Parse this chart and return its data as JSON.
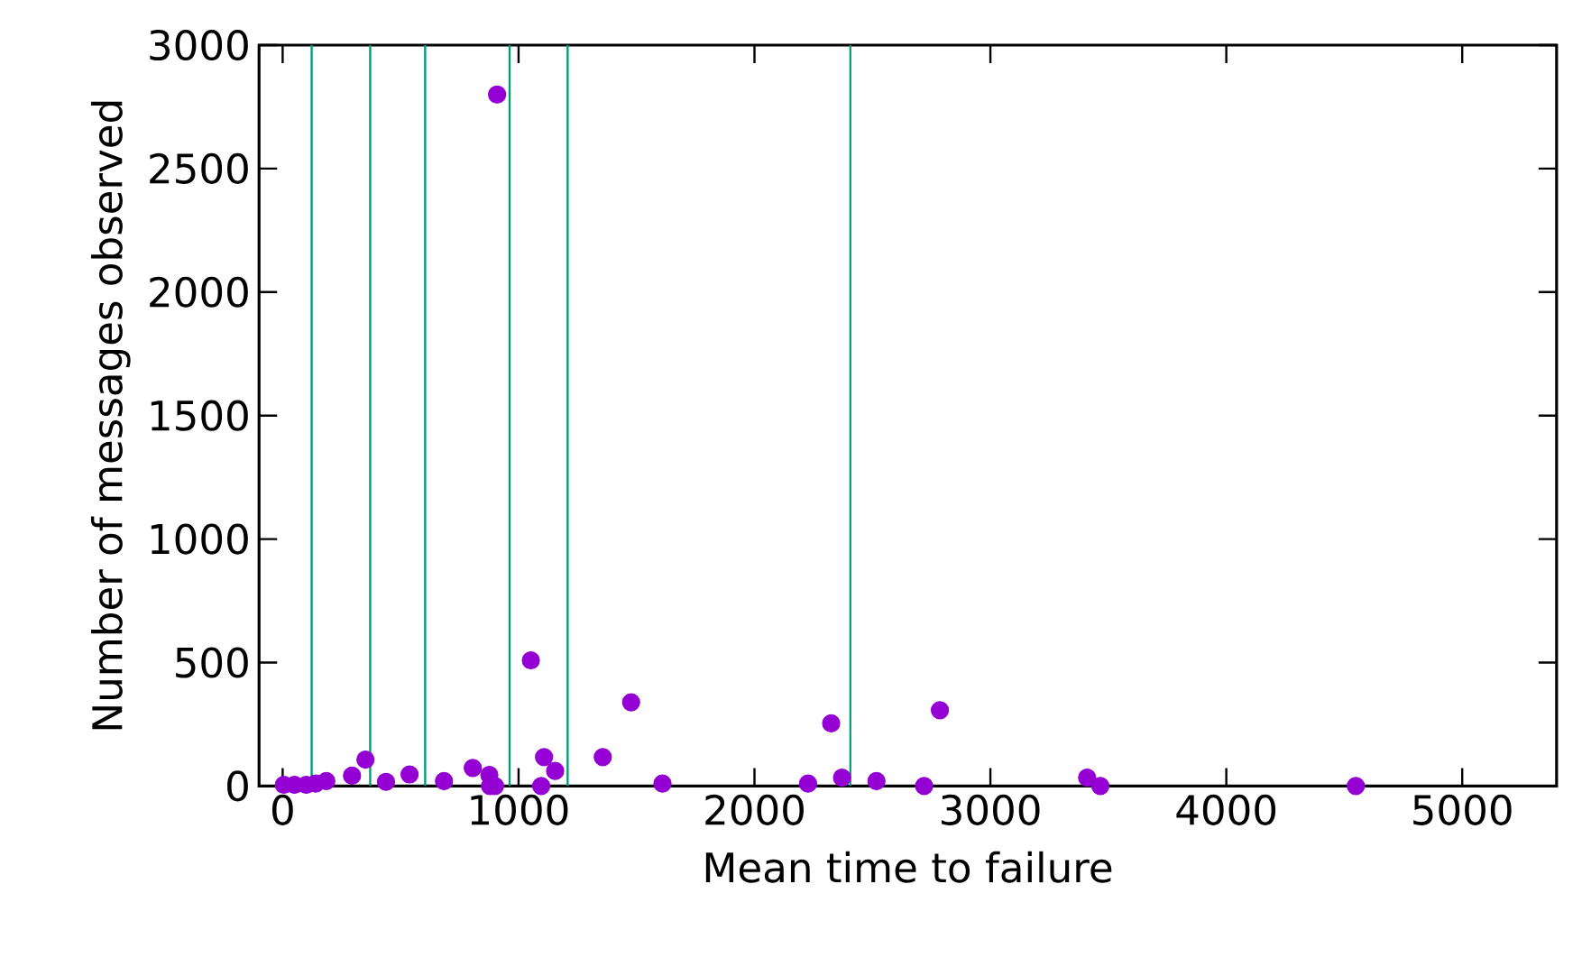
{
  "chart_data": {
    "type": "scatter",
    "xlabel": "Mean time to failure",
    "ylabel": "Number of messages observed",
    "xlim": [
      -100,
      5400
    ],
    "ylim": [
      0,
      3000
    ],
    "xticks": [
      0,
      1000,
      2000,
      3000,
      4000,
      5000
    ],
    "yticks": [
      0,
      500,
      1000,
      1500,
      2000,
      2500,
      3000
    ],
    "marker": "circle",
    "series": [
      {
        "color": "#9400d3",
        "x": [
          5,
          50,
          100,
          140,
          185,
          294,
          351,
          438,
          538,
          684,
          806,
          876,
          879,
          900,
          909,
          1052,
          1096,
          1108,
          1155,
          1357,
          1477,
          1610,
          2227,
          2325,
          2371,
          2517,
          2719,
          2786,
          3410,
          3466,
          4549
        ],
        "values": [
          5,
          5,
          5,
          10,
          20,
          42,
          107,
          17,
          47,
          20,
          73,
          45,
          0,
          0,
          2800,
          509,
          0,
          117,
          61,
          117,
          339,
          10,
          10,
          254,
          34,
          20,
          0,
          307,
          34,
          0,
          0
        ]
      }
    ],
    "ref_lines": [
      {
        "axis": "x",
        "value": 123,
        "color": "#009e73"
      },
      {
        "axis": "x",
        "value": 371,
        "color": "#009e73"
      },
      {
        "axis": "x",
        "value": 604,
        "color": "#009e73"
      },
      {
        "axis": "x",
        "value": 962,
        "color": "#009e73"
      },
      {
        "axis": "x",
        "value": 1208,
        "color": "#009e73"
      },
      {
        "axis": "x",
        "value": 2406,
        "color": "#009e73"
      }
    ]
  }
}
